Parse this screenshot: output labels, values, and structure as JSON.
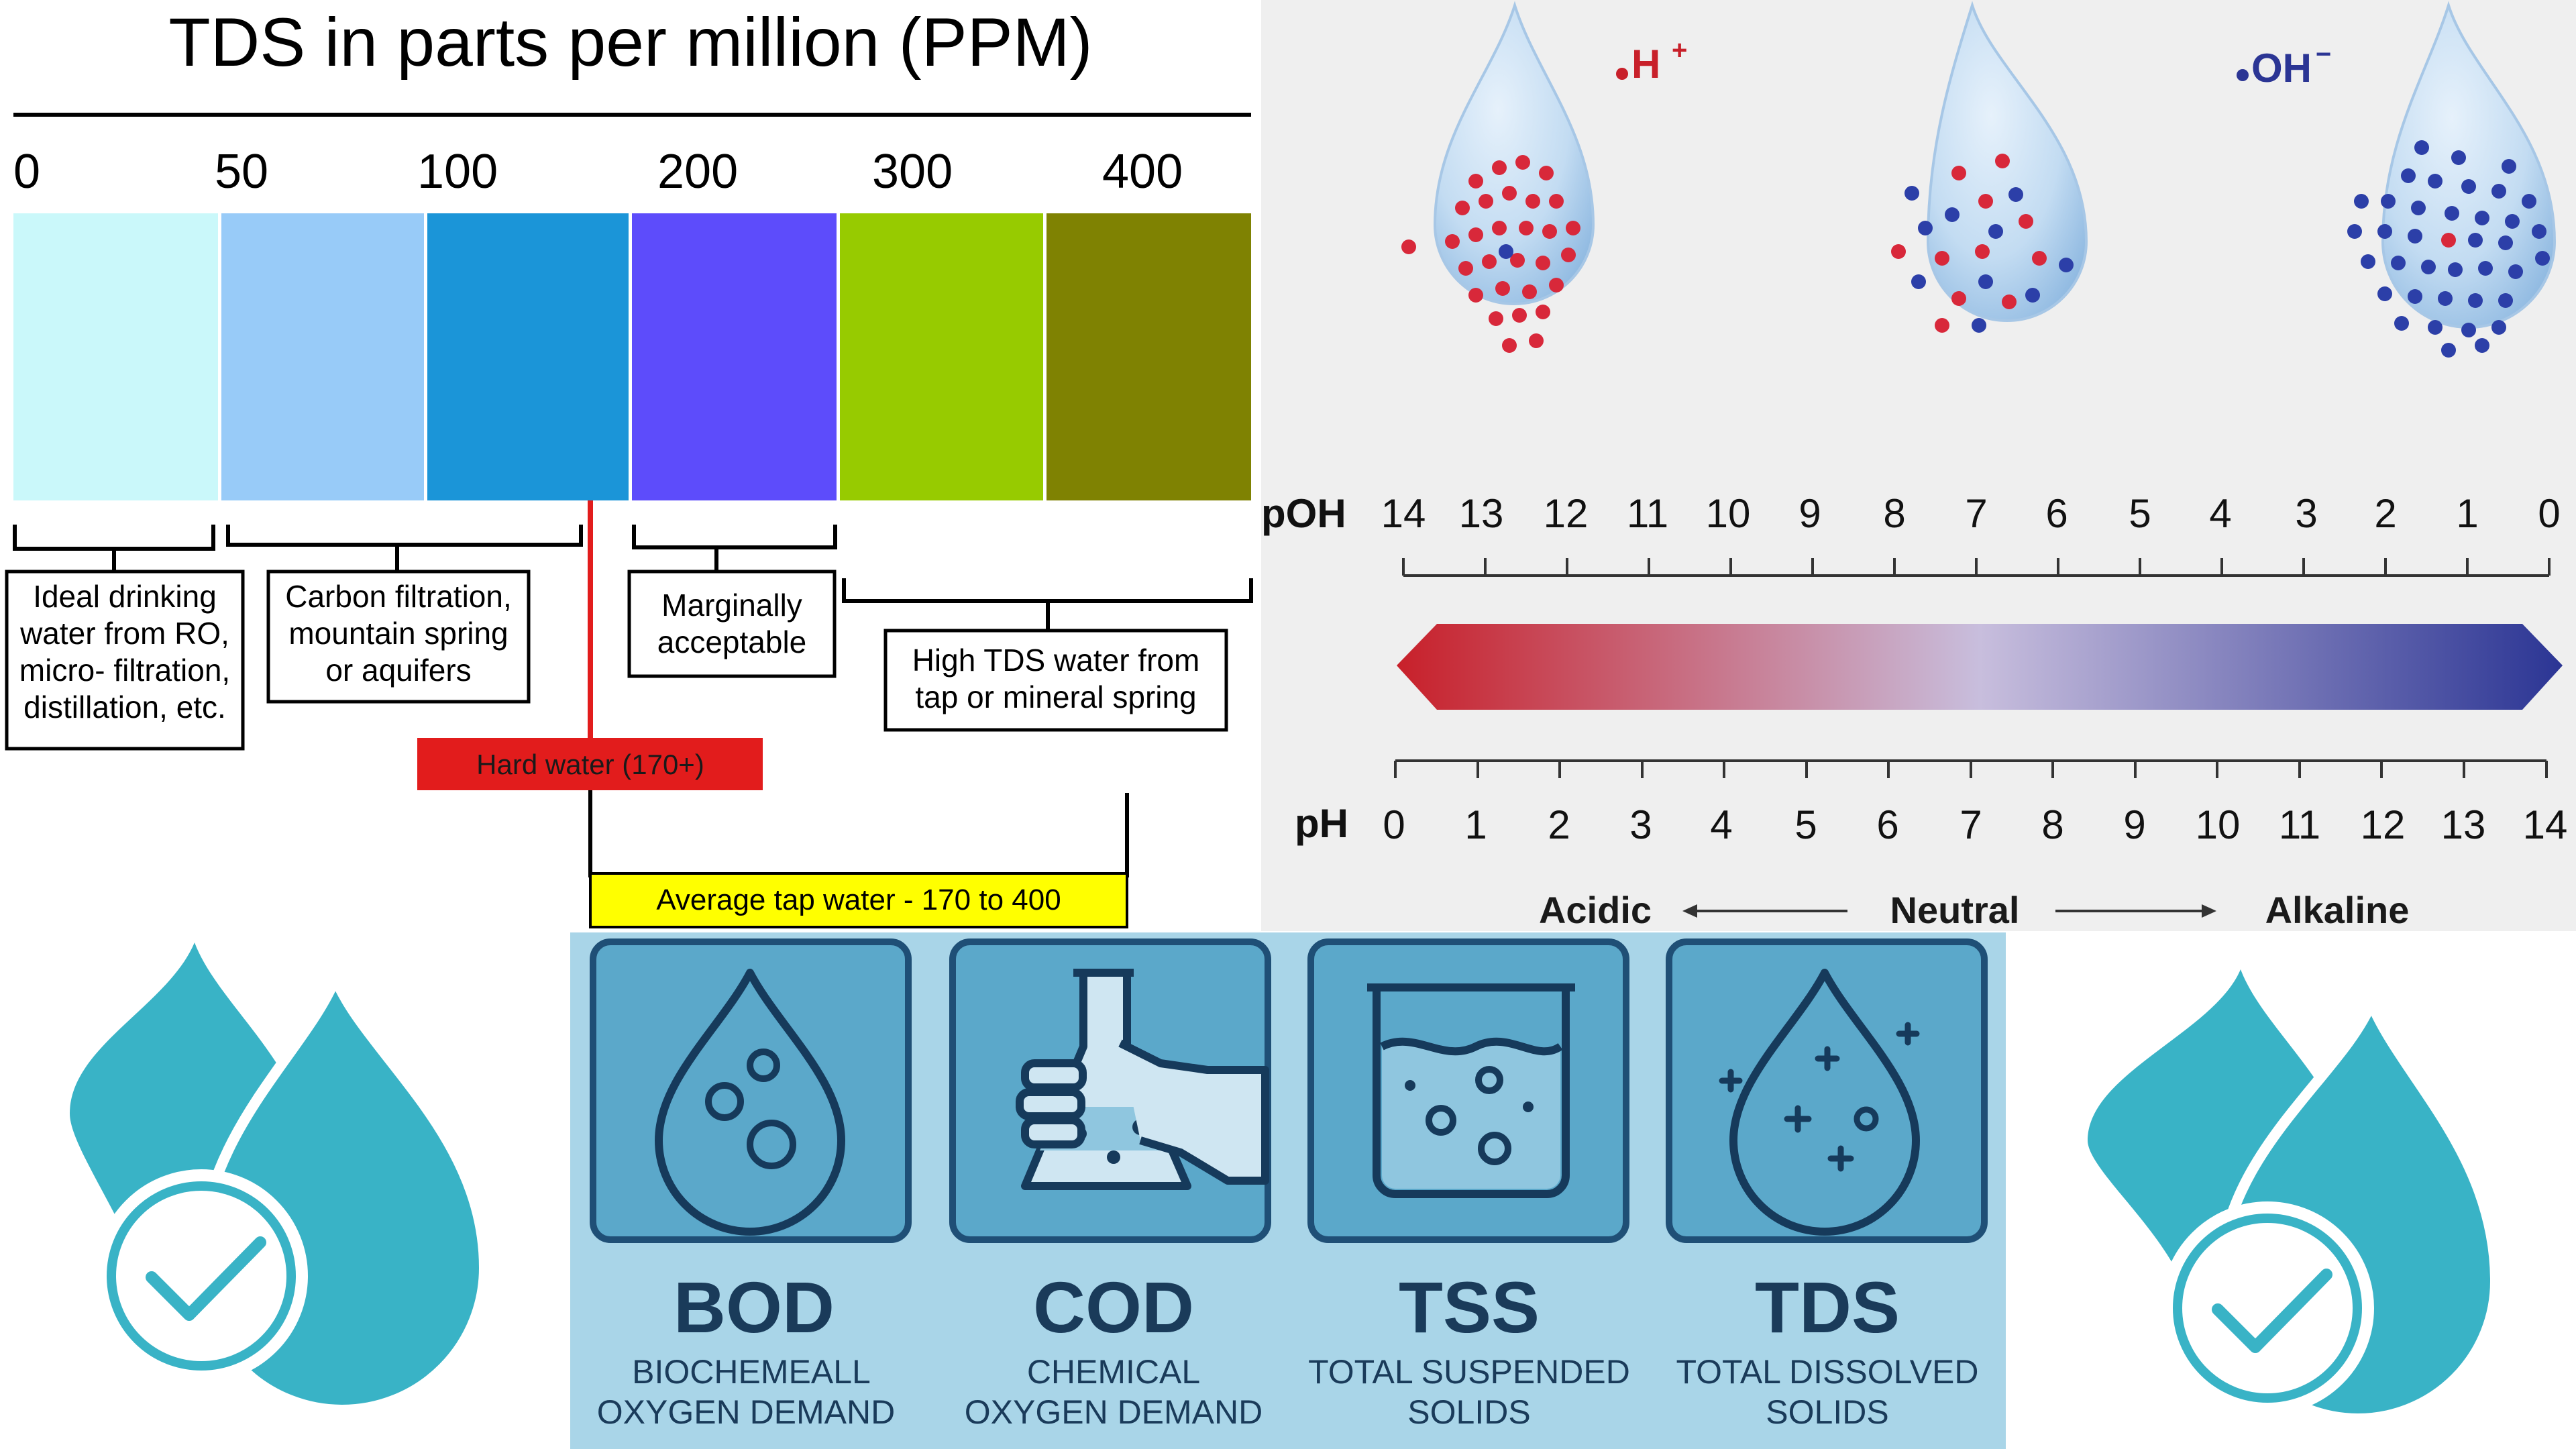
{
  "tds_scale": {
    "title": "TDS in parts per million (PPM)",
    "ticks": [
      "0",
      "50",
      "100",
      "200",
      "300",
      "400"
    ],
    "bands": [
      {
        "color": "#caf8fa"
      },
      {
        "color": "#98cbf8"
      },
      {
        "color": "#1b95d8"
      },
      {
        "color": "#5d4cfb"
      },
      {
        "color": "#97cb00"
      },
      {
        "color": "#7f8202"
      }
    ],
    "boxes": [
      {
        "lines": [
          "Ideal drinking",
          "water from RO,",
          "micro- filtration,",
          "distillation, etc."
        ]
      },
      {
        "lines": [
          "Carbon filtration,",
          "mountain spring",
          "or aquifers"
        ]
      },
      {
        "lines": [
          "Marginally",
          "acceptable"
        ]
      },
      {
        "lines": [
          "High TDS water from",
          "tap or mineral spring"
        ]
      }
    ],
    "hard_water_label": "Hard water (170+)",
    "average_tap_label": "Average tap water - 170 to 400",
    "hard_water_color": "#e21c1c",
    "average_tap_color": "#ffff00"
  },
  "ph_scale": {
    "h_label": "H",
    "h_sup": "+",
    "oh_label": "OH",
    "oh_sup": "−",
    "poh_label": "pOH",
    "poh_ticks": [
      "14",
      "13",
      "12",
      "11",
      "10",
      "9",
      "8",
      "7",
      "6",
      "5",
      "4",
      "3",
      "2",
      "1",
      "0"
    ],
    "ph_label": "pH",
    "ph_ticks": [
      "0",
      "1",
      "2",
      "3",
      "4",
      "5",
      "6",
      "7",
      "8",
      "9",
      "10",
      "11",
      "12",
      "13",
      "14"
    ],
    "acidic": "Acidic",
    "neutral": "Neutral",
    "alkaline": "Alkaline",
    "acid_color": "#c8202a",
    "base_color": "#2b3594",
    "neutral_color": "#c8bedd"
  },
  "parameters": [
    {
      "abbr": "BOD",
      "line1": "BIOCHEMEALL",
      "line2": "OXYGEN DEMAND",
      "icon": "water-drop-bubbles-icon"
    },
    {
      "abbr": "COD",
      "line1": "CHEMICAL",
      "line2": "OXYGEN DEMAND",
      "icon": "flask-in-hand-icon"
    },
    {
      "abbr": "TSS",
      "line1": "TOTAL SUSPENDED",
      "line2": "SOLIDS",
      "icon": "beaker-solids-icon"
    },
    {
      "abbr": "TDS",
      "line1": "TOTAL DISSOLVED",
      "line2": "SOLIDS",
      "icon": "drop-plus-icon"
    }
  ],
  "colors": {
    "panel_bg": "#a9d5e8",
    "tile_bg": "#5ba8ca",
    "tile_border": "#1f4f76",
    "dark_text": "#1a3b5a",
    "drop_icon": "#39b3c6"
  }
}
